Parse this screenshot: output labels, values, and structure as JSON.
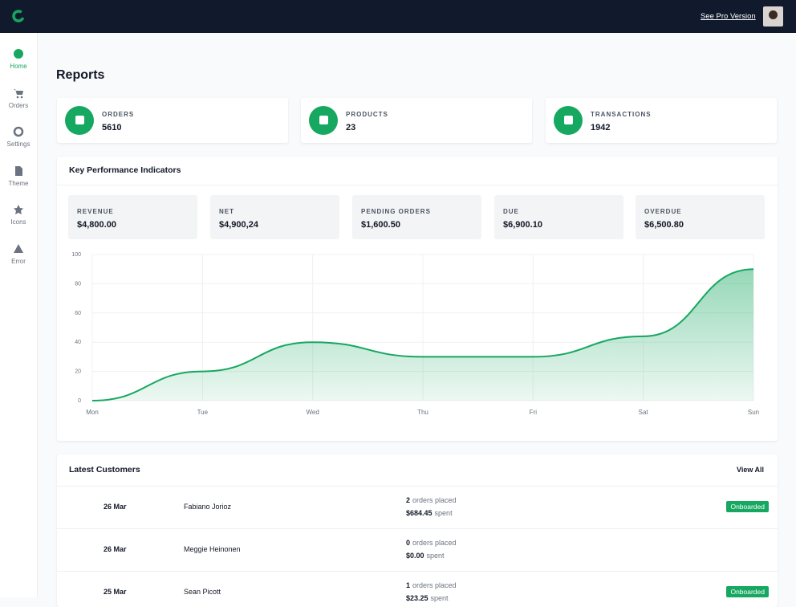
{
  "header": {
    "link": "See Pro Version"
  },
  "sidebar": {
    "items": [
      "Home",
      "Orders",
      "Settings",
      "Theme",
      "Icons",
      "Error"
    ]
  },
  "page": {
    "title": "Reports"
  },
  "stats": [
    {
      "label": "ORDERS",
      "value": 5610
    },
    {
      "label": "PRODUCTS",
      "value": 23
    },
    {
      "label": "TRANSACTIONS",
      "value": 1942
    }
  ],
  "kpi": {
    "title": "Key Performance Indicators",
    "items": [
      {
        "label": "REVENUE",
        "value": "$4,800.00"
      },
      {
        "label": "NET",
        "value": "$4,900,24"
      },
      {
        "label": "PENDING ORDERS",
        "value": "$1,600.50"
      },
      {
        "label": "DUE",
        "value": "$6,900.10"
      },
      {
        "label": "OVERDUE",
        "value": "$6,500.80"
      }
    ]
  },
  "chart": {
    "type": "line",
    "categories": [
      "Mon",
      "Tue",
      "Wed",
      "Thu",
      "Fri",
      "Sat",
      "Sun"
    ],
    "values": [
      0,
      20,
      40,
      30,
      30,
      44,
      90
    ],
    "color": "#16a760",
    "ylim": [
      0,
      100
    ],
    "yticks": [
      0,
      20,
      40,
      60,
      80,
      100
    ],
    "grid": true
  },
  "customers": {
    "title": "Latest Customers",
    "action": "View All",
    "orders_text": "orders placed",
    "spent_text": "spent",
    "rows": [
      {
        "date": "26 Mar",
        "name": "Fabiano Jorioz",
        "orders": 2,
        "spent": "$684.45",
        "status": "Onboarded"
      },
      {
        "date": "26 Mar",
        "name": "Meggie Heinonen",
        "orders": 0,
        "spent": "$0.00"
      },
      {
        "date": "25 Mar",
        "name": "Sean Picott",
        "orders": 1,
        "spent": "$23.25",
        "status": "Onboarded"
      }
    ]
  }
}
